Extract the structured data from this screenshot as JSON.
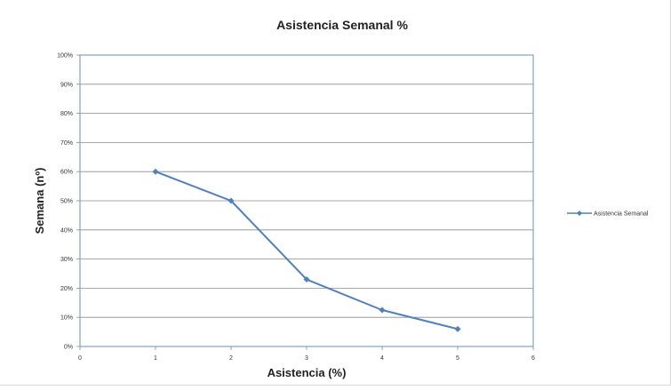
{
  "chart_data": {
    "type": "line",
    "title": "Asistencia Semanal %",
    "xlabel": "Asistencia (%)",
    "ylabel": "Semana (nº)",
    "xlim": [
      0,
      6
    ],
    "ylim": [
      0,
      1
    ],
    "x_ticks": [
      "0",
      "1",
      "2",
      "3",
      "4",
      "5",
      "6"
    ],
    "y_ticks": [
      "0%",
      "10%",
      "20%",
      "30%",
      "40%",
      "50%",
      "60%",
      "70%",
      "80%",
      "90%",
      "100%"
    ],
    "grid": true,
    "legend_position": "right",
    "series": [
      {
        "name": "Asistencia Semanal",
        "color": "#4f81bd",
        "x": [
          1,
          2,
          3,
          4,
          5
        ],
        "y": [
          0.6,
          0.5,
          0.23,
          0.125,
          0.06
        ]
      }
    ]
  }
}
